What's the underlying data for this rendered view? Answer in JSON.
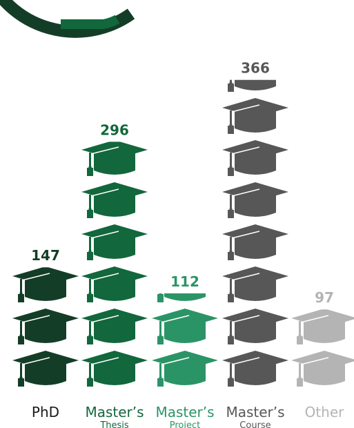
{
  "chart_data": {
    "type": "bar",
    "unit_per_icon": 50,
    "categories": [
      {
        "name": "PhD",
        "sub": "",
        "value": 147,
        "color": "#143d28"
      },
      {
        "name": "Master’s",
        "sub": "Thesis",
        "value": 296,
        "color": "#12673c"
      },
      {
        "name": "Master’s",
        "sub": "Project",
        "value": 112,
        "color": "#2b9466"
      },
      {
        "name": "Master’s",
        "sub": "Course",
        "value": 366,
        "color": "#575757"
      },
      {
        "name": "Other",
        "sub": "",
        "value": 97,
        "color": "#b4b4b4"
      }
    ],
    "values": [
      147,
      296,
      112,
      366,
      97
    ]
  },
  "colors": {
    "ring_outer": "#143d28",
    "ring_inner": "#12673c"
  }
}
